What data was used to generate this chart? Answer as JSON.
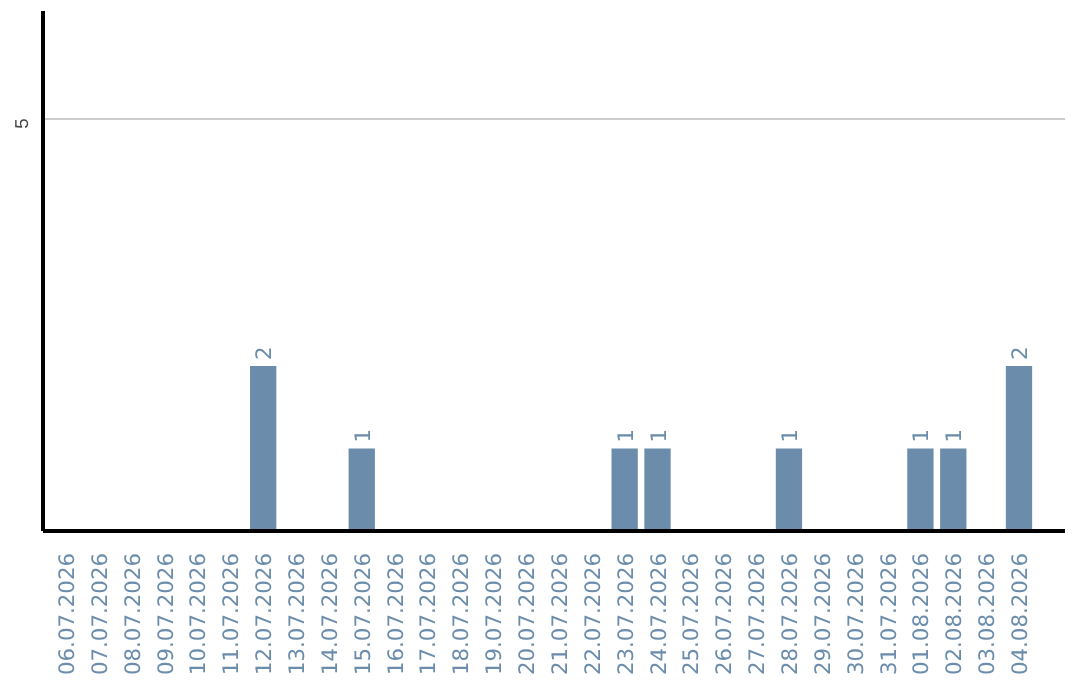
{
  "chart_data": {
    "type": "bar",
    "categories": [
      "06.07.2026",
      "07.07.2026",
      "08.07.2026",
      "09.07.2026",
      "10.07.2026",
      "11.07.2026",
      "12.07.2026",
      "13.07.2026",
      "14.07.2026",
      "15.07.2026",
      "16.07.2026",
      "17.07.2026",
      "18.07.2026",
      "19.07.2026",
      "20.07.2026",
      "21.07.2026",
      "22.07.2026",
      "23.07.2026",
      "24.07.2026",
      "25.07.2026",
      "26.07.2026",
      "27.07.2026",
      "28.07.2026",
      "29.07.2026",
      "30.07.2026",
      "31.07.2026",
      "01.08.2026",
      "02.08.2026",
      "03.08.2026",
      "04.08.2026"
    ],
    "values": [
      0,
      0,
      0,
      0,
      0,
      0,
      2,
      0,
      0,
      1,
      0,
      0,
      0,
      0,
      0,
      0,
      0,
      1,
      1,
      0,
      0,
      0,
      1,
      0,
      0,
      0,
      1,
      1,
      0,
      2
    ],
    "value_labels": [
      null,
      null,
      null,
      null,
      null,
      null,
      "2",
      null,
      null,
      "1",
      null,
      null,
      null,
      null,
      null,
      null,
      null,
      "1",
      "1",
      null,
      null,
      null,
      "1",
      null,
      null,
      null,
      "1",
      "1",
      null,
      "2"
    ],
    "color": "#6b8cab",
    "ylim": [
      0,
      6.3
    ],
    "yticks": [
      5
    ],
    "grid": "y"
  }
}
